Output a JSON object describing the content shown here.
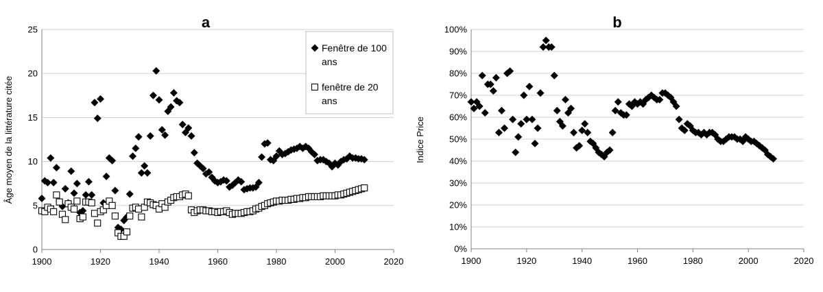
{
  "chart_data": [
    {
      "type": "scatter",
      "title": "a",
      "xlabel": "",
      "ylabel": "Âge moyen de la littérature citée",
      "xlim": [
        1900,
        2020
      ],
      "ylim": [
        0,
        25
      ],
      "xticks": [
        1900,
        1920,
        1940,
        1960,
        1980,
        2000,
        2020
      ],
      "yticks": [
        0,
        5,
        10,
        15,
        20,
        25
      ],
      "ytick_labels": [
        "0",
        "5",
        "10",
        "15",
        "20",
        "25"
      ],
      "grid": "horizontal",
      "legend_placement": "top-right",
      "series": [
        {
          "name": "Fenêtre de 100 ans",
          "marker": "diamond-filled",
          "color": "#000000",
          "x": [
            1900,
            1901,
            1902,
            1903,
            1904,
            1905,
            1906,
            1907,
            1908,
            1909,
            1910,
            1911,
            1912,
            1913,
            1914,
            1915,
            1916,
            1917,
            1918,
            1919,
            1920,
            1921,
            1922,
            1923,
            1924,
            1925,
            1926,
            1927,
            1928,
            1929,
            1930,
            1931,
            1932,
            1933,
            1934,
            1935,
            1936,
            1937,
            1938,
            1939,
            1940,
            1941,
            1942,
            1943,
            1944,
            1945,
            1946,
            1947,
            1948,
            1949,
            1950,
            1951,
            1952,
            1953,
            1954,
            1955,
            1956,
            1957,
            1958,
            1959,
            1960,
            1961,
            1962,
            1963,
            1964,
            1965,
            1966,
            1967,
            1968,
            1969,
            1970,
            1971,
            1972,
            1973,
            1974,
            1975,
            1976,
            1977,
            1978,
            1979,
            1980,
            1981,
            1982,
            1983,
            1984,
            1985,
            1986,
            1987,
            1988,
            1989,
            1990,
            1991,
            1992,
            1993,
            1994,
            1995,
            1996,
            1997,
            1998,
            1999,
            2000,
            2001,
            2002,
            2003,
            2004,
            2005,
            2006,
            2007,
            2008,
            2009,
            2010
          ],
          "y": [
            5.8,
            7.8,
            7.6,
            10.4,
            7.6,
            9.3,
            5.4,
            4.9,
            6.9,
            5.3,
            8.9,
            6.4,
            7.5,
            4.2,
            4.4,
            6.2,
            7.7,
            6.2,
            16.7,
            14.9,
            17.1,
            5.3,
            8.3,
            10.4,
            10.1,
            6.7,
            2.5,
            2.3,
            3.3,
            3.7,
            6.3,
            10.6,
            11.5,
            12.8,
            8.7,
            9.5,
            8.7,
            12.9,
            17.5,
            20.3,
            17.0,
            13.6,
            13.0,
            15.7,
            16.2,
            17.8,
            16.9,
            16.7,
            14.2,
            13.3,
            13.8,
            12.9,
            11.0,
            9.8,
            9.5,
            9.2,
            8.6,
            8.8,
            8.2,
            7.8,
            7.6,
            7.7,
            7.9,
            7.8,
            7.1,
            7.3,
            7.6,
            7.9,
            7.7,
            6.8,
            6.9,
            7.0,
            7.0,
            7.1,
            7.6,
            10.5,
            12.0,
            12.1,
            10.2,
            10.1,
            10.6,
            11.2,
            10.8,
            10.9,
            11.1,
            11.3,
            11.4,
            11.5,
            11.7,
            11.5,
            11.7,
            11.5,
            11.1,
            10.8,
            10.1,
            10.2,
            10.2,
            10.0,
            9.8,
            9.4,
            9.8,
            9.6,
            10.0,
            10.2,
            10.3,
            10.6,
            10.4,
            10.4,
            10.3,
            10.3,
            10.2
          ]
        },
        {
          "name": "fenêtre de 20 ans",
          "marker": "square-open",
          "color": "#000000",
          "x": [
            1900,
            1901,
            1902,
            1903,
            1904,
            1905,
            1906,
            1907,
            1908,
            1909,
            1910,
            1911,
            1912,
            1913,
            1914,
            1915,
            1916,
            1917,
            1918,
            1919,
            1920,
            1921,
            1922,
            1923,
            1924,
            1925,
            1926,
            1927,
            1928,
            1929,
            1930,
            1931,
            1932,
            1933,
            1934,
            1935,
            1936,
            1937,
            1938,
            1939,
            1940,
            1941,
            1942,
            1943,
            1944,
            1945,
            1946,
            1947,
            1948,
            1949,
            1950,
            1951,
            1952,
            1953,
            1954,
            1955,
            1956,
            1957,
            1958,
            1959,
            1960,
            1961,
            1962,
            1963,
            1964,
            1965,
            1966,
            1967,
            1968,
            1969,
            1970,
            1971,
            1972,
            1973,
            1974,
            1975,
            1976,
            1977,
            1978,
            1979,
            1980,
            1981,
            1982,
            1983,
            1984,
            1985,
            1986,
            1987,
            1988,
            1989,
            1990,
            1991,
            1992,
            1993,
            1994,
            1995,
            1996,
            1997,
            1998,
            1999,
            2000,
            2001,
            2002,
            2003,
            2004,
            2005,
            2006,
            2007,
            2008,
            2009,
            2010
          ],
          "y": [
            4.4,
            4.3,
            4.8,
            4.6,
            4.3,
            6.2,
            5.4,
            4.0,
            3.4,
            5.2,
            4.8,
            4.6,
            5.5,
            3.5,
            3.7,
            5.4,
            5.4,
            5.3,
            4.1,
            3.0,
            4.3,
            4.5,
            5.0,
            5.5,
            5.0,
            3.8,
            1.9,
            1.5,
            1.5,
            2.0,
            3.8,
            4.7,
            4.8,
            4.6,
            3.7,
            4.8,
            5.4,
            5.3,
            5.1,
            5.0,
            4.6,
            5.2,
            4.8,
            5.4,
            5.6,
            5.9,
            6.0,
            6.0,
            6.2,
            6.3,
            6.1,
            4.5,
            4.2,
            4.4,
            4.5,
            4.5,
            4.4,
            4.4,
            4.3,
            4.3,
            4.2,
            4.3,
            4.3,
            4.4,
            4.2,
            4.0,
            4.1,
            4.1,
            4.1,
            4.2,
            4.3,
            4.3,
            4.4,
            4.6,
            4.7,
            4.9,
            5.0,
            5.2,
            5.3,
            5.4,
            5.5,
            5.5,
            5.6,
            5.6,
            5.6,
            5.7,
            5.7,
            5.8,
            5.8,
            5.9,
            5.9,
            6.0,
            6.0,
            6.0,
            6.0,
            6.0,
            6.1,
            6.1,
            6.1,
            6.1,
            6.1,
            6.2,
            6.2,
            6.3,
            6.4,
            6.5,
            6.6,
            6.7,
            6.8,
            6.9,
            7.0
          ]
        }
      ]
    },
    {
      "type": "scatter",
      "title": "b",
      "xlabel": "",
      "ylabel": "Indice Price",
      "xlim": [
        1900,
        2020
      ],
      "ylim": [
        0,
        100
      ],
      "xticks": [
        1900,
        1920,
        1940,
        1960,
        1980,
        2000,
        2020
      ],
      "yticks": [
        0,
        10,
        20,
        30,
        40,
        50,
        60,
        70,
        80,
        90,
        100
      ],
      "ytick_labels": [
        "0%",
        "10%",
        "20%",
        "30%",
        "40%",
        "50%",
        "60%",
        "70%",
        "80%",
        "90%",
        "100%"
      ],
      "grid": "horizontal",
      "legend_placement": "none",
      "series": [
        {
          "marker": "diamond-filled",
          "color": "#000000",
          "x": [
            1900,
            1901,
            1902,
            1903,
            1904,
            1905,
            1906,
            1907,
            1908,
            1909,
            1910,
            1911,
            1912,
            1913,
            1914,
            1915,
            1916,
            1917,
            1918,
            1919,
            1920,
            1921,
            1922,
            1923,
            1924,
            1925,
            1926,
            1927,
            1928,
            1929,
            1930,
            1931,
            1932,
            1933,
            1934,
            1935,
            1936,
            1937,
            1938,
            1939,
            1940,
            1941,
            1942,
            1943,
            1944,
            1945,
            1946,
            1947,
            1948,
            1949,
            1950,
            1951,
            1952,
            1953,
            1954,
            1955,
            1956,
            1957,
            1958,
            1959,
            1960,
            1961,
            1962,
            1963,
            1964,
            1965,
            1966,
            1967,
            1968,
            1969,
            1970,
            1971,
            1972,
            1973,
            1974,
            1975,
            1976,
            1977,
            1978,
            1979,
            1980,
            1981,
            1982,
            1983,
            1984,
            1985,
            1986,
            1987,
            1988,
            1989,
            1990,
            1991,
            1992,
            1993,
            1994,
            1995,
            1996,
            1997,
            1998,
            1999,
            2000,
            2001,
            2002,
            2003,
            2004,
            2005,
            2006,
            2007,
            2008,
            2009
          ],
          "y": [
            67,
            64,
            67,
            65,
            79,
            62,
            75,
            75,
            72,
            78,
            53,
            63,
            55,
            80,
            81,
            59,
            44,
            51,
            57,
            70,
            59,
            74,
            59,
            48,
            55,
            71,
            92,
            95,
            92,
            92,
            79,
            63,
            58,
            56,
            68,
            62,
            64,
            53,
            46,
            47,
            54,
            57,
            53,
            49,
            48,
            46,
            44,
            43,
            42,
            44,
            45,
            53,
            63,
            67,
            62,
            61,
            61,
            66,
            65,
            67,
            66,
            67,
            66,
            68,
            69,
            70,
            69,
            68,
            68,
            71,
            71,
            70,
            69,
            67,
            65,
            59,
            55,
            54,
            57,
            56,
            54,
            53,
            53,
            52,
            53,
            52,
            53,
            53,
            52,
            50,
            49,
            49,
            50,
            51,
            51,
            51,
            50,
            50,
            49,
            51,
            50,
            49,
            49,
            48,
            47,
            46,
            45,
            43,
            42,
            41
          ]
        }
      ]
    }
  ]
}
